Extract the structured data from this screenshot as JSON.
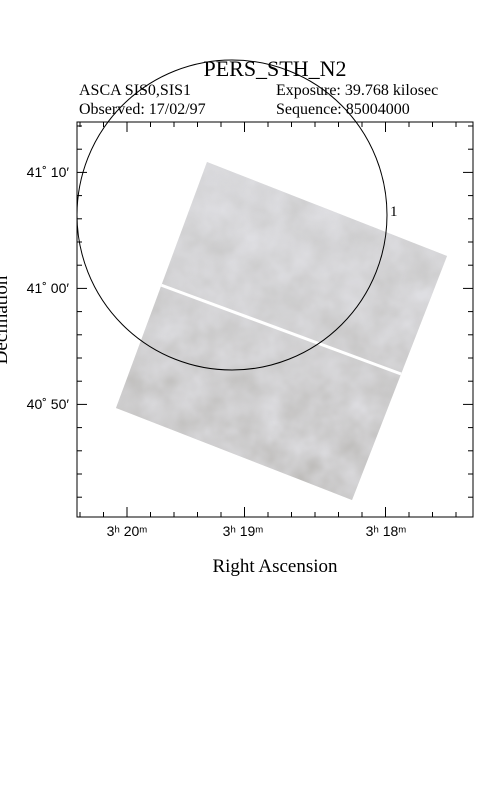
{
  "header": {
    "title": "PERS_STH_N2",
    "instrument": "ASCA SIS0,SIS1",
    "exposure": "Exposure: 39.768 kilosec",
    "observed": "Observed: 17/02/97",
    "sequence": "Sequence: 85004000"
  },
  "axes": {
    "x_label": "Right Ascension",
    "y_label": "Declination",
    "x_ticks": [
      "3ʰ 20ᵐ",
      "3ʰ 19ᵐ",
      "3ʰ 18ᵐ"
    ],
    "y_ticks": [
      "41˚ 10′",
      "41˚ 00′",
      "40˚ 50′"
    ]
  },
  "regions": [
    {
      "label": "1"
    }
  ]
}
